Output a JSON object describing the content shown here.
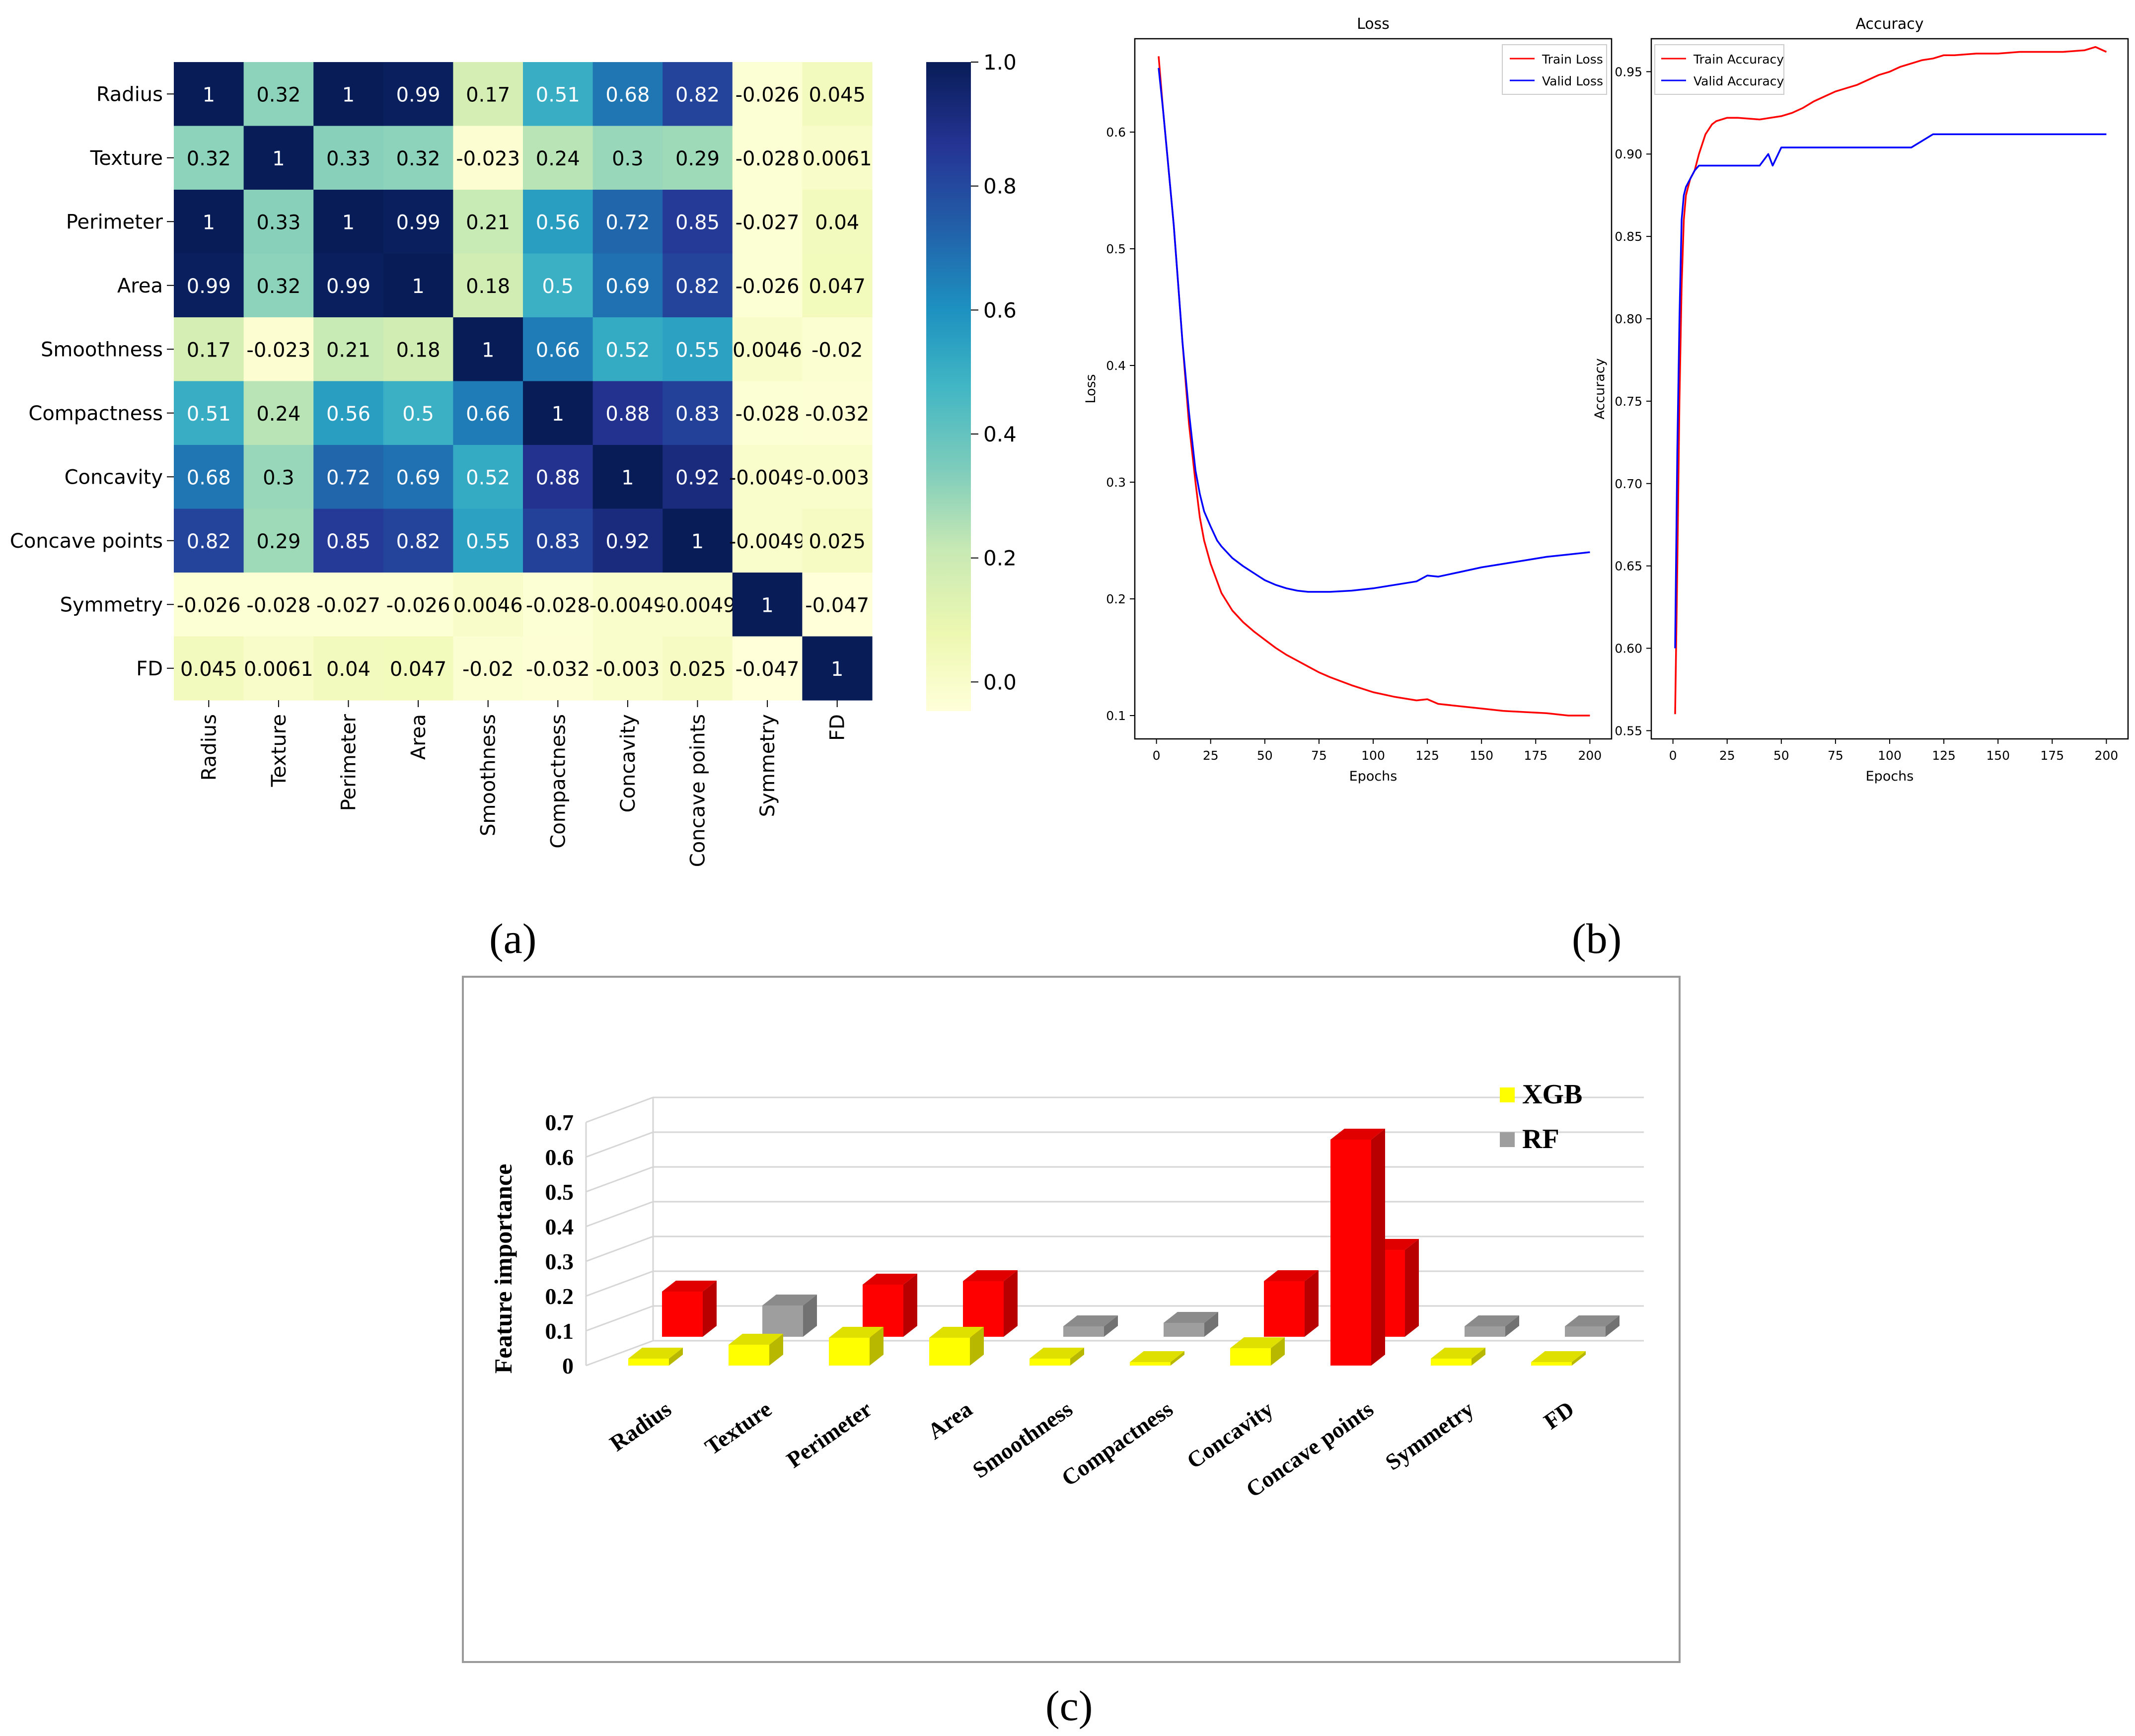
{
  "panel_labels": {
    "a": "(a)",
    "b": "(b)",
    "c": "(c)"
  },
  "colors": {
    "train": "#ff0000",
    "valid": "#0000ff",
    "xgb": "#ffff00",
    "rf": "#9e9e9e",
    "highlight": "#ff0000"
  },
  "chart_data": [
    {
      "id": "a",
      "type": "heatmap",
      "title": "",
      "labels": [
        "Radius",
        "Texture",
        "Perimeter",
        "Area",
        "Smoothness",
        "Compactness",
        "Concavity",
        "Concave points",
        "Symmetry",
        "FD"
      ],
      "matrix": [
        [
          1,
          0.32,
          1,
          0.99,
          0.17,
          0.51,
          0.68,
          0.82,
          -0.026,
          0.045
        ],
        [
          0.32,
          1,
          0.33,
          0.32,
          -0.023,
          0.24,
          0.3,
          0.29,
          -0.028,
          0.0061
        ],
        [
          1,
          0.33,
          1,
          0.99,
          0.21,
          0.56,
          0.72,
          0.85,
          -0.027,
          0.04
        ],
        [
          0.99,
          0.32,
          0.99,
          1,
          0.18,
          0.5,
          0.69,
          0.82,
          -0.026,
          0.047
        ],
        [
          0.17,
          -0.023,
          0.21,
          0.18,
          1,
          0.66,
          0.52,
          0.55,
          0.0046,
          -0.02
        ],
        [
          0.51,
          0.24,
          0.56,
          0.5,
          0.66,
          1,
          0.88,
          0.83,
          -0.028,
          -0.032
        ],
        [
          0.68,
          0.3,
          0.72,
          0.69,
          0.52,
          0.88,
          1,
          0.92,
          -0.0049,
          -0.003
        ],
        [
          0.82,
          0.29,
          0.85,
          0.82,
          0.55,
          0.83,
          0.92,
          1,
          -0.0049,
          0.025
        ],
        [
          -0.026,
          -0.028,
          -0.027,
          -0.026,
          0.0046,
          -0.028,
          -0.0049,
          -0.0049,
          1,
          -0.047
        ],
        [
          0.045,
          0.0061,
          0.04,
          0.047,
          -0.02,
          -0.032,
          -0.003,
          0.025,
          -0.047,
          1
        ]
      ],
      "colorbar": {
        "range": [
          -0.047,
          1.0
        ],
        "ticks": [
          "1.0",
          "0.8",
          "0.6",
          "0.4",
          "0.2",
          "0.0"
        ],
        "tick_values": [
          1.0,
          0.8,
          0.6,
          0.4,
          0.2,
          0.0
        ],
        "colormap": "YlGnBu"
      }
    },
    {
      "id": "b1",
      "type": "line",
      "title": "Loss",
      "xlabel": "Epochs",
      "ylabel": "Loss",
      "xlim": [
        -10,
        210
      ],
      "ylim": [
        0.08,
        0.68
      ],
      "xticks": [
        "0",
        "25",
        "50",
        "75",
        "100",
        "125",
        "150",
        "175",
        "200"
      ],
      "xtick_values": [
        0,
        25,
        50,
        75,
        100,
        125,
        150,
        175,
        200
      ],
      "yticks": [
        "0.6",
        "0.5",
        "0.4",
        "0.3",
        "0.2",
        "0.1"
      ],
      "ytick_values": [
        0.6,
        0.5,
        0.4,
        0.3,
        0.2,
        0.1
      ],
      "legend": "top-right",
      "series": [
        {
          "name": "Train Loss",
          "color": "#ff0000",
          "x": [
            1,
            3,
            5,
            8,
            10,
            12,
            15,
            18,
            20,
            22,
            25,
            28,
            30,
            35,
            40,
            45,
            50,
            55,
            60,
            65,
            70,
            75,
            80,
            90,
            100,
            110,
            120,
            125,
            130,
            140,
            150,
            160,
            170,
            180,
            190,
            200
          ],
          "y": [
            0.665,
            0.62,
            0.58,
            0.52,
            0.47,
            0.42,
            0.35,
            0.3,
            0.27,
            0.25,
            0.23,
            0.215,
            0.205,
            0.19,
            0.18,
            0.172,
            0.165,
            0.158,
            0.152,
            0.147,
            0.142,
            0.137,
            0.133,
            0.126,
            0.12,
            0.116,
            0.113,
            0.114,
            0.11,
            0.108,
            0.106,
            0.104,
            0.103,
            0.102,
            0.1,
            0.1
          ]
        },
        {
          "name": "Valid Loss",
          "color": "#0000ff",
          "x": [
            1,
            3,
            5,
            8,
            10,
            12,
            15,
            18,
            20,
            22,
            25,
            28,
            30,
            35,
            40,
            45,
            50,
            55,
            60,
            65,
            70,
            75,
            80,
            90,
            100,
            110,
            120,
            125,
            130,
            140,
            150,
            160,
            170,
            180,
            190,
            200
          ],
          "y": [
            0.655,
            0.62,
            0.58,
            0.52,
            0.47,
            0.42,
            0.36,
            0.31,
            0.29,
            0.275,
            0.262,
            0.25,
            0.245,
            0.235,
            0.228,
            0.222,
            0.216,
            0.212,
            0.209,
            0.207,
            0.206,
            0.206,
            0.206,
            0.207,
            0.209,
            0.212,
            0.215,
            0.22,
            0.219,
            0.223,
            0.227,
            0.23,
            0.233,
            0.236,
            0.238,
            0.24
          ]
        }
      ]
    },
    {
      "id": "b2",
      "type": "line",
      "title": "Accuracy",
      "xlabel": "Epochs",
      "ylabel": "Accuracy",
      "xlim": [
        -10,
        210
      ],
      "ylim": [
        0.545,
        0.97
      ],
      "xticks": [
        "0",
        "25",
        "50",
        "75",
        "100",
        "125",
        "150",
        "175",
        "200"
      ],
      "xtick_values": [
        0,
        25,
        50,
        75,
        100,
        125,
        150,
        175,
        200
      ],
      "yticks": [
        "0.95",
        "0.90",
        "0.85",
        "0.80",
        "0.75",
        "0.70",
        "0.65",
        "0.60",
        "0.55"
      ],
      "ytick_values": [
        0.95,
        0.9,
        0.85,
        0.8,
        0.75,
        0.7,
        0.65,
        0.6,
        0.55
      ],
      "legend": "top-left",
      "series": [
        {
          "name": "Train Accuracy",
          "color": "#ff0000",
          "x": [
            1,
            2,
            3,
            4,
            5,
            6,
            8,
            10,
            12,
            15,
            18,
            20,
            25,
            30,
            40,
            50,
            55,
            60,
            65,
            70,
            75,
            80,
            85,
            90,
            95,
            100,
            105,
            110,
            115,
            120,
            125,
            130,
            140,
            150,
            160,
            170,
            180,
            190,
            195,
            200
          ],
          "y": [
            0.56,
            0.65,
            0.75,
            0.82,
            0.86,
            0.875,
            0.885,
            0.89,
            0.9,
            0.912,
            0.918,
            0.92,
            0.922,
            0.922,
            0.921,
            0.923,
            0.925,
            0.928,
            0.932,
            0.935,
            0.938,
            0.94,
            0.942,
            0.945,
            0.948,
            0.95,
            0.953,
            0.955,
            0.957,
            0.958,
            0.96,
            0.96,
            0.961,
            0.961,
            0.962,
            0.962,
            0.962,
            0.963,
            0.965,
            0.962
          ]
        },
        {
          "name": "Valid Accuracy",
          "color": "#0000ff",
          "x": [
            1,
            2,
            3,
            4,
            5,
            6,
            8,
            10,
            12,
            15,
            20,
            30,
            40,
            44,
            46,
            50,
            55,
            60,
            65,
            70,
            75,
            80,
            90,
            100,
            110,
            120,
            130,
            140,
            150,
            160,
            170,
            180,
            190,
            200
          ],
          "y": [
            0.6,
            0.72,
            0.8,
            0.86,
            0.875,
            0.88,
            0.885,
            0.89,
            0.893,
            0.893,
            0.893,
            0.893,
            0.893,
            0.9,
            0.893,
            0.904,
            0.904,
            0.904,
            0.904,
            0.904,
            0.904,
            0.904,
            0.904,
            0.904,
            0.904,
            0.912,
            0.912,
            0.912,
            0.912,
            0.912,
            0.912,
            0.912,
            0.912,
            0.912
          ]
        }
      ]
    },
    {
      "id": "c",
      "type": "bar",
      "subtype": "3d-grouped",
      "title": "",
      "ylabel": "Feature importance",
      "ylim": [
        0,
        0.7
      ],
      "yticks": [
        "0.7",
        "0.6",
        "0.5",
        "0.4",
        "0.3",
        "0.2",
        "0.1",
        "0"
      ],
      "ytick_values": [
        0.7,
        0.6,
        0.5,
        0.4,
        0.3,
        0.2,
        0.1,
        0
      ],
      "categories": [
        "Radius",
        "Texture",
        "Perimeter",
        "Area",
        "Smoothness",
        "Compactness",
        "Concavity",
        "Concave points",
        "Symmetry",
        "FD"
      ],
      "legend": "top-right",
      "series": [
        {
          "name": "XGB",
          "color": "#ffff00",
          "values": [
            0.02,
            0.06,
            0.08,
            0.08,
            0.02,
            0.01,
            0.05,
            0.65,
            0.02,
            0.01
          ],
          "highlight": [
            false,
            false,
            false,
            false,
            false,
            false,
            false,
            true,
            false,
            false
          ]
        },
        {
          "name": "RF",
          "color": "#9e9e9e",
          "values": [
            0.13,
            0.09,
            0.15,
            0.16,
            0.03,
            0.04,
            0.16,
            0.25,
            0.03,
            0.03
          ],
          "highlight": [
            true,
            false,
            true,
            true,
            false,
            false,
            true,
            true,
            false,
            false
          ]
        }
      ]
    }
  ]
}
